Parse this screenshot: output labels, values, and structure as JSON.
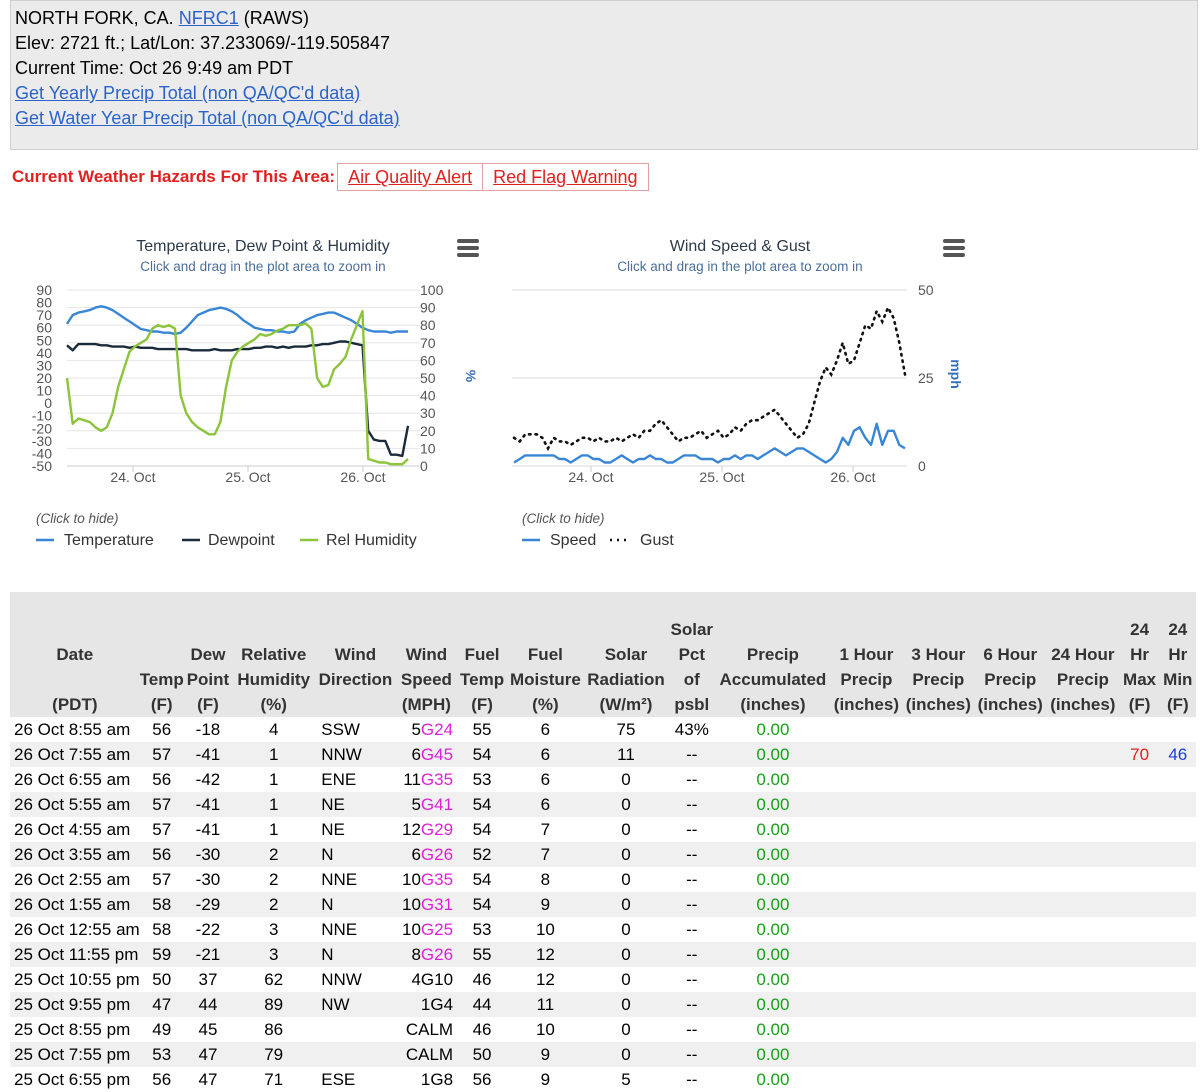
{
  "station": {
    "line1_prefix": "NORTH FORK, CA.",
    "id_link": "NFRC1",
    "line1_suffix": "(RAWS)",
    "elev_line": "Elev: 2721 ft.; Lat/Lon: 37.233069/-119.505847",
    "time_line": "Current Time: Oct 26 9:49 am PDT",
    "link_yearly": "Get Yearly Precip Total (non QA/QC'd data)",
    "link_water_year": "Get Water Year Precip Total (non QA/QC'd data)"
  },
  "hazards": {
    "label": "Current Weather Hazards For This Area:",
    "items": [
      "Air Quality Alert",
      "Red Flag Warning"
    ]
  },
  "colors": {
    "temperature": "#3a86d6",
    "dewpoint": "#1a2b3c",
    "humidity": "#8cc43c",
    "speed": "#3a86d6",
    "gust": "#111111",
    "hazard": "#e0211f",
    "gust_text": "#e020d8",
    "precip_text": "#15a215"
  },
  "chart_data": [
    {
      "type": "line",
      "title": "Temperature, Dew Point & Humidity",
      "subtitle": "Click and drag in the plot area to zoom in",
      "x_ticks": [
        "24. Oct",
        "25. Oct",
        "26. Oct"
      ],
      "left_axis": {
        "ticks": [
          "90",
          "80",
          "70",
          "60",
          "50",
          "40",
          "30",
          "20",
          "10",
          "0",
          "-10",
          "-20",
          "-30",
          "-40",
          "-50"
        ],
        "ylim": [
          -50,
          90
        ]
      },
      "right_axis": {
        "label": "%",
        "ticks": [
          "100",
          "90",
          "80",
          "70",
          "60",
          "50",
          "40",
          "30",
          "20",
          "10",
          "0"
        ],
        "ylim": [
          0,
          100
        ]
      },
      "x_range": [
        "23 Oct 5:00 pm",
        "26 Oct 9:00 am"
      ],
      "legend_hint": "(Click to hide)",
      "legend_position": "bottom-left",
      "series": [
        {
          "name": "Temperature",
          "axis": "left",
          "values": [
            63,
            70,
            72,
            73,
            74,
            76,
            77,
            76,
            74,
            71,
            68,
            65,
            62,
            59,
            58,
            57,
            57,
            56,
            56,
            55,
            56,
            60,
            65,
            70,
            72,
            74,
            75,
            76,
            75,
            73,
            70,
            66,
            63,
            60,
            59,
            58,
            58,
            57,
            57,
            56,
            57,
            63,
            66,
            68,
            70,
            71,
            72,
            72,
            70,
            68,
            66,
            63,
            60,
            58,
            57,
            57,
            57,
            56,
            57,
            57,
            57
          ]
        },
        {
          "name": "Dewpoint",
          "axis": "left",
          "values": [
            46,
            42,
            47,
            47,
            47,
            47,
            46,
            46,
            45,
            45,
            45,
            44,
            45,
            44,
            44,
            44,
            43,
            43,
            43,
            43,
            43,
            43,
            42,
            42,
            42,
            42,
            43,
            42,
            42,
            42,
            43,
            43,
            43,
            44,
            44,
            45,
            45,
            44,
            45,
            44,
            45,
            45,
            45,
            46,
            46,
            47,
            47,
            48,
            49,
            49,
            48,
            47,
            46,
            -22,
            -29,
            -30,
            -30,
            -41,
            -41,
            -42,
            -18
          ]
        },
        {
          "name": "Rel Humidity",
          "axis": "right",
          "values": [
            50,
            24,
            27,
            26,
            25,
            22,
            20,
            22,
            30,
            45,
            55,
            65,
            68,
            70,
            72,
            78,
            80,
            79,
            80,
            78,
            40,
            30,
            25,
            22,
            20,
            18,
            18,
            25,
            45,
            60,
            65,
            68,
            70,
            72,
            75,
            74,
            75,
            77,
            78,
            80,
            80,
            80,
            81,
            78,
            50,
            45,
            46,
            55,
            58,
            62,
            72,
            80,
            88,
            4,
            3,
            2,
            2,
            1,
            1,
            1,
            4
          ]
        }
      ]
    },
    {
      "type": "line",
      "title": "Wind Speed & Gust",
      "subtitle": "Click and drag in the plot area to zoom in",
      "x_ticks": [
        "24. Oct",
        "25. Oct",
        "26. Oct"
      ],
      "right_axis": {
        "label": "mph",
        "ticks": [
          "50",
          "25",
          "0"
        ],
        "ylim": [
          0,
          50
        ]
      },
      "x_range": [
        "23 Oct 5:00 pm",
        "26 Oct 9:00 am"
      ],
      "legend_hint": "(Click to hide)",
      "legend_position": "bottom-left",
      "series": [
        {
          "name": "Speed",
          "values": [
            1,
            2,
            3,
            3,
            3,
            3,
            3,
            3,
            2,
            2,
            1,
            2,
            3,
            3,
            2,
            2,
            1,
            1,
            2,
            3,
            2,
            1,
            2,
            2,
            3,
            2,
            2,
            1,
            1,
            2,
            3,
            3,
            3,
            2,
            2,
            2,
            1,
            2,
            2,
            3,
            2,
            3,
            3,
            2,
            3,
            4,
            5,
            4,
            3,
            4,
            5,
            5,
            4,
            3,
            2,
            1,
            2,
            4,
            8,
            6,
            10,
            11,
            8,
            6,
            12,
            6,
            10,
            10,
            6,
            5
          ]
        },
        {
          "name": "Gust",
          "values": [
            8,
            7,
            9,
            9,
            9,
            8,
            5,
            8,
            7,
            7,
            6,
            7,
            8,
            8,
            7,
            8,
            7,
            7,
            8,
            7,
            8,
            9,
            8,
            10,
            10,
            12,
            13,
            11,
            9,
            7,
            8,
            8,
            9,
            10,
            8,
            9,
            10,
            8,
            9,
            11,
            10,
            12,
            13,
            13,
            14,
            15,
            16,
            14,
            12,
            10,
            8,
            9,
            12,
            18,
            24,
            28,
            26,
            30,
            35,
            29,
            30,
            35,
            40,
            39,
            44,
            41,
            45,
            42,
            35,
            26
          ]
        }
      ]
    }
  ],
  "table": {
    "headers": [
      [
        "Date",
        "",
        "(PDT)"
      ],
      [
        "",
        "Temp",
        "(F)"
      ],
      [
        "",
        "Dew Point",
        "(F)"
      ],
      [
        "",
        "Relative Humidity",
        "(%)"
      ],
      [
        "",
        "Wind Direction",
        ""
      ],
      [
        "",
        "Wind Speed",
        "(MPH)"
      ],
      [
        "",
        "Fuel Temp",
        "(F)"
      ],
      [
        "",
        "Fuel Moisture",
        "(%)"
      ],
      [
        "",
        "Solar Radiation",
        "(W/m²)"
      ],
      [
        "",
        "Solar Pct",
        "of psbl"
      ],
      [
        "",
        "Precip Accumulated",
        "(inches)"
      ],
      [
        "",
        "1 Hour Precip",
        "(inches)"
      ],
      [
        "",
        "3 Hour Precip",
        "(inches)"
      ],
      [
        "",
        "6 Hour Precip",
        "(inches)"
      ],
      [
        "",
        "24 Hour Precip",
        "(inches)"
      ],
      [
        "",
        "24 Hr Max",
        "(F)"
      ],
      [
        "",
        "24 Hr Min",
        "(F)"
      ]
    ],
    "rows": [
      {
        "date": "26 Oct 8:55 am",
        "temp": "56",
        "dew": "-18",
        "rh": "4",
        "dir": "SSW",
        "spd": "5",
        "gst": "G24",
        "ftemp": "55",
        "fmoist": "6",
        "solar": "75",
        "pct": "43%",
        "precip": "0.00",
        "max": "",
        "min": ""
      },
      {
        "date": "26 Oct 7:55 am",
        "temp": "57",
        "dew": "-41",
        "rh": "1",
        "dir": "NNW",
        "spd": "6",
        "gst": "G45",
        "ftemp": "54",
        "fmoist": "6",
        "solar": "11",
        "pct": "--",
        "precip": "0.00",
        "max": "70",
        "min": "46"
      },
      {
        "date": "26 Oct 6:55 am",
        "temp": "56",
        "dew": "-42",
        "rh": "1",
        "dir": "ENE",
        "spd": "11",
        "gst": "G35",
        "ftemp": "53",
        "fmoist": "6",
        "solar": "0",
        "pct": "--",
        "precip": "0.00",
        "max": "",
        "min": ""
      },
      {
        "date": "26 Oct 5:55 am",
        "temp": "57",
        "dew": "-41",
        "rh": "1",
        "dir": "NE",
        "spd": "5",
        "gst": "G41",
        "ftemp": "54",
        "fmoist": "6",
        "solar": "0",
        "pct": "--",
        "precip": "0.00",
        "max": "",
        "min": ""
      },
      {
        "date": "26 Oct 4:55 am",
        "temp": "57",
        "dew": "-41",
        "rh": "1",
        "dir": "NE",
        "spd": "12",
        "gst": "G29",
        "ftemp": "54",
        "fmoist": "7",
        "solar": "0",
        "pct": "--",
        "precip": "0.00",
        "max": "",
        "min": ""
      },
      {
        "date": "26 Oct 3:55 am",
        "temp": "56",
        "dew": "-30",
        "rh": "2",
        "dir": "N",
        "spd": "6",
        "gst": "G26",
        "ftemp": "52",
        "fmoist": "7",
        "solar": "0",
        "pct": "--",
        "precip": "0.00",
        "max": "",
        "min": ""
      },
      {
        "date": "26 Oct 2:55 am",
        "temp": "57",
        "dew": "-30",
        "rh": "2",
        "dir": "NNE",
        "spd": "10",
        "gst": "G35",
        "ftemp": "54",
        "fmoist": "8",
        "solar": "0",
        "pct": "--",
        "precip": "0.00",
        "max": "",
        "min": ""
      },
      {
        "date": "26 Oct 1:55 am",
        "temp": "58",
        "dew": "-29",
        "rh": "2",
        "dir": "N",
        "spd": "10",
        "gst": "G31",
        "ftemp": "54",
        "fmoist": "9",
        "solar": "0",
        "pct": "--",
        "precip": "0.00",
        "max": "",
        "min": ""
      },
      {
        "date": "26 Oct 12:55 am",
        "temp": "58",
        "dew": "-22",
        "rh": "3",
        "dir": "NNE",
        "spd": "10",
        "gst": "G25",
        "ftemp": "53",
        "fmoist": "10",
        "solar": "0",
        "pct": "--",
        "precip": "0.00",
        "max": "",
        "min": ""
      },
      {
        "date": "25 Oct 11:55 pm",
        "temp": "59",
        "dew": "-21",
        "rh": "3",
        "dir": "N",
        "spd": "8",
        "gst": "G26",
        "ftemp": "55",
        "fmoist": "12",
        "solar": "0",
        "pct": "--",
        "precip": "0.00",
        "max": "",
        "min": ""
      },
      {
        "date": "25 Oct 10:55 pm",
        "temp": "50",
        "dew": "37",
        "rh": "62",
        "dir": "NNW",
        "spd": "4G10",
        "gst": "",
        "ftemp": "46",
        "fmoist": "12",
        "solar": "0",
        "pct": "--",
        "precip": "0.00",
        "max": "",
        "min": ""
      },
      {
        "date": "25 Oct 9:55 pm",
        "temp": "47",
        "dew": "44",
        "rh": "89",
        "dir": "NW",
        "spd": "1G4",
        "gst": "",
        "ftemp": "44",
        "fmoist": "11",
        "solar": "0",
        "pct": "--",
        "precip": "0.00",
        "max": "",
        "min": ""
      },
      {
        "date": "25 Oct 8:55 pm",
        "temp": "49",
        "dew": "45",
        "rh": "86",
        "dir": "",
        "spd": "CALM",
        "gst": "",
        "ftemp": "46",
        "fmoist": "10",
        "solar": "0",
        "pct": "--",
        "precip": "0.00",
        "max": "",
        "min": ""
      },
      {
        "date": "25 Oct 7:55 pm",
        "temp": "53",
        "dew": "47",
        "rh": "79",
        "dir": "",
        "spd": "CALM",
        "gst": "",
        "ftemp": "50",
        "fmoist": "9",
        "solar": "0",
        "pct": "--",
        "precip": "0.00",
        "max": "",
        "min": ""
      },
      {
        "date": "25 Oct 6:55 pm",
        "temp": "56",
        "dew": "47",
        "rh": "71",
        "dir": "ESE",
        "spd": "1G8",
        "gst": "",
        "ftemp": "56",
        "fmoist": "9",
        "solar": "5",
        "pct": "--",
        "precip": "0.00",
        "max": "",
        "min": ""
      }
    ]
  }
}
